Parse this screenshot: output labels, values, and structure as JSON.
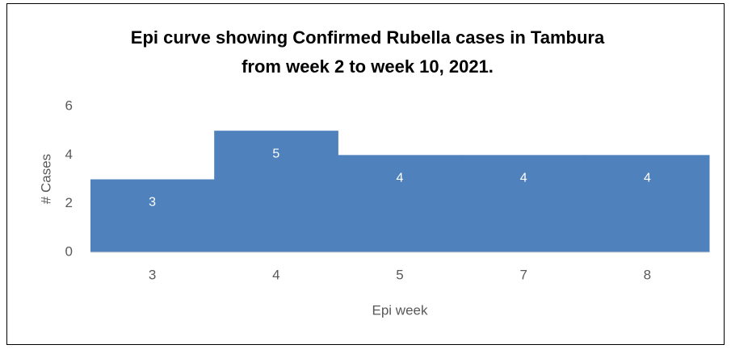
{
  "chart_data": {
    "type": "bar",
    "title": [
      "Epi curve showing Confirmed Rubella cases in Tambura",
      "from week 2 to week 10, 2021."
    ],
    "x_label": "Epi week",
    "y_label": "# Cases",
    "categories": [
      "3",
      "4",
      "5",
      "7",
      "8"
    ],
    "values": [
      3,
      5,
      4,
      4,
      4
    ],
    "color": "#4f81bd",
    "ylim": [
      0,
      6
    ],
    "yticks": [
      0,
      2,
      4,
      6
    ],
    "grid": false
  }
}
